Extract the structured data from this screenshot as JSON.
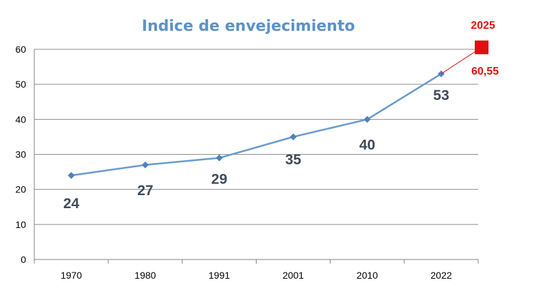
{
  "chart_data": {
    "type": "line",
    "title": "Indice de envejecimiento",
    "xlabel": "",
    "ylabel": "",
    "ylim": [
      0,
      60
    ],
    "yticks": [
      0,
      10,
      20,
      30,
      40,
      50,
      60
    ],
    "grid": true,
    "legend": "none",
    "categories": [
      "1970",
      "1980",
      "1991",
      "2001",
      "2010",
      "2022"
    ],
    "series": [
      {
        "values": [
          24,
          27,
          29,
          35,
          40,
          53
        ],
        "color": "#6a9ccc"
      }
    ],
    "data_labels": [
      "24",
      "27",
      "29",
      "35",
      "40",
      "53"
    ],
    "projection": {
      "year_label": "2025",
      "value": 60.55,
      "value_label": "60,55",
      "color": "#e01010"
    },
    "colors": {
      "title": "#5b92c8",
      "grid": "#8c8c8c",
      "data_label": "#3f4a59"
    }
  }
}
